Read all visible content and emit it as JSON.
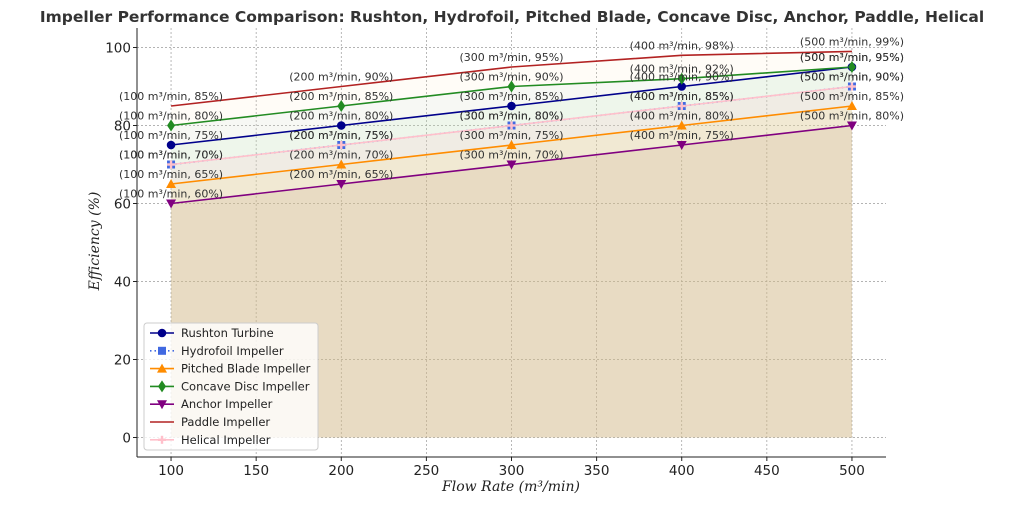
{
  "chart_data": {
    "type": "line",
    "title": "Impeller Performance Comparison: Rushton, Hydrofoil, Pitched Blade, Concave Disc, Anchor, Paddle, Helical",
    "xlabel": "Flow Rate (m³/min)",
    "ylabel": "Efficiency (%)",
    "x": [
      100,
      200,
      300,
      400,
      500
    ],
    "xlim": [
      80,
      520
    ],
    "ylim": [
      -5,
      105
    ],
    "xticks": [
      "100",
      "150",
      "200",
      "250",
      "300",
      "350",
      "400",
      "450",
      "500"
    ],
    "yticks": [
      "0",
      "20",
      "40",
      "60",
      "80",
      "100"
    ],
    "grid": true,
    "legend_position": "lower-left",
    "series": [
      {
        "name": "Rushton Turbine",
        "values": [
          75,
          80,
          85,
          90,
          95
        ],
        "color": "#00008b",
        "marker": "circle",
        "fill": "#90ee90",
        "labels": [
          "(100 m³/min, 75%)",
          "(200 m³/min, 80%)",
          "(300 m³/min, 85%)",
          "(400 m³/min, 90%)",
          "(500 m³/min, 95%)"
        ]
      },
      {
        "name": "Hydrofoil Impeller",
        "values": [
          70,
          75,
          80,
          85,
          90
        ],
        "color": "#4169e1",
        "marker": "square",
        "linestyle": "dotted",
        "fill": "#ffc0cb",
        "labels": [
          "(100 m³/min, 70%)",
          "(200 m³/min, 75%)",
          "(300 m³/min, 80%)",
          "(400 m³/min, 85%)",
          "(500 m³/min, 90%)"
        ]
      },
      {
        "name": "Pitched Blade Impeller",
        "values": [
          65,
          70,
          75,
          80,
          85
        ],
        "color": "#ff8c00",
        "marker": "triangle-up",
        "fill": "#ffd700",
        "labels": [
          "(100 m³/min, 65%)",
          "(200 m³/min, 70%)",
          "(300 m³/min, 75%)",
          "(400 m³/min, 80%)",
          "(500 m³/min, 85%)"
        ]
      },
      {
        "name": "Concave Disc Impeller",
        "values": [
          80,
          85,
          90,
          92,
          95
        ],
        "color": "#228b22",
        "marker": "diamond",
        "fill": "#add8e6",
        "labels": [
          "(100 m³/min, 80%)",
          "(200 m³/min, 85%)",
          "(300 m³/min, 90%)",
          "(400 m³/min, 92%)",
          "(500 m³/min, 95%)"
        ]
      },
      {
        "name": "Anchor Impeller",
        "values": [
          60,
          65,
          70,
          75,
          80
        ],
        "color": "#800080",
        "marker": "triangle-down",
        "fill": "#8b4513",
        "labels": [
          "(100 m³/min, 60%)",
          "(200 m³/min, 65%)",
          "(300 m³/min, 70%)",
          "(400 m³/min, 75%)",
          "(500 m³/min, 80%)"
        ]
      },
      {
        "name": "Paddle Impeller",
        "values": [
          85,
          90,
          95,
          98,
          99
        ],
        "color": "#b22222",
        "marker": "none",
        "fill": "#ffe4b5",
        "labels": [
          "(100 m³/min, 85%)",
          "(200 m³/min, 90%)",
          "(300 m³/min, 95%)",
          "(400 m³/min, 98%)",
          "(500 m³/min, 99%)"
        ]
      },
      {
        "name": "Helical Impeller",
        "values": [
          70,
          75,
          80,
          85,
          90
        ],
        "color": "#ffc0cb",
        "marker": "plus",
        "fill": "#ffc0cb",
        "labels": [
          "(100 m³/min, 70%)",
          "(200 m³/min, 75%)",
          "(300 m³/min, 80%)",
          "(400 m³/min, 85%)",
          "(500 m³/min, 90%)"
        ]
      }
    ]
  }
}
